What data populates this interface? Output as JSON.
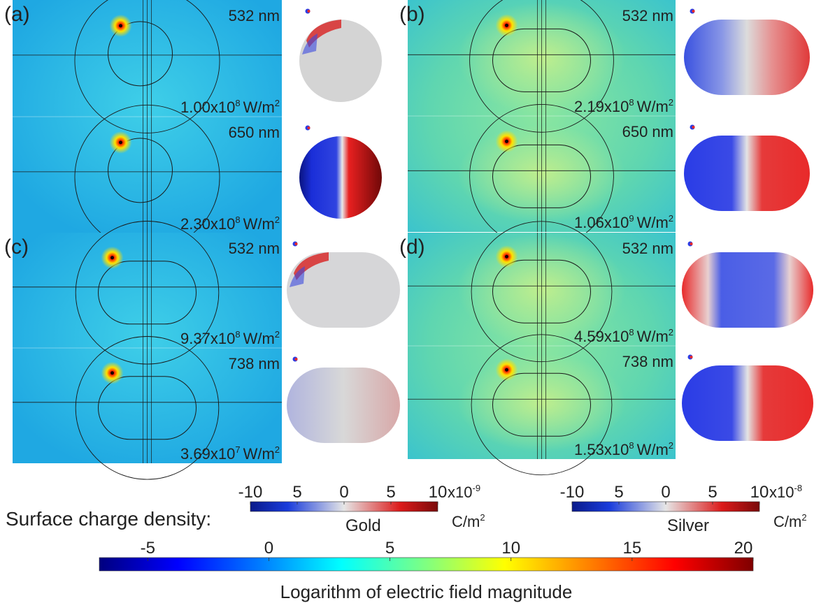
{
  "panels": [
    {
      "id": "a",
      "label": "(a)",
      "shape": "sphere",
      "metal": "gold",
      "rows": [
        {
          "wavelength": "532 nm",
          "intensity": "1.00x10",
          "exp": "8",
          "unit": "W/m",
          "sq": "2",
          "mode": "edge",
          "cmid": "#d4d4d4"
        },
        {
          "wavelength": "650 nm",
          "intensity": "2.30x10",
          "exp": "8",
          "unit": "W/m",
          "sq": "2",
          "mode": "dipole-strong",
          "cmid": "#ececec"
        }
      ]
    },
    {
      "id": "b",
      "label": "(b)",
      "shape": "rod",
      "metal": "silver",
      "rows": [
        {
          "wavelength": "532 nm",
          "intensity": "2.19x10",
          "exp": "8",
          "unit": "W/m",
          "sq": "2",
          "mode": "quadrupole",
          "cmid": "#dcdcdc"
        },
        {
          "wavelength": "650 nm",
          "intensity": "1.06x10",
          "exp": "9",
          "unit": "W/m",
          "sq": "2",
          "mode": "dipole",
          "cmid": "#e4e4e4"
        }
      ]
    },
    {
      "id": "c",
      "label": "(c)",
      "shape": "rod",
      "metal": "gold",
      "rows": [
        {
          "wavelength": "532 nm",
          "intensity": "9.37x10",
          "exp": "8",
          "unit": "W/m",
          "sq": "2",
          "mode": "edge",
          "cmid": "#d6d6d8"
        },
        {
          "wavelength": "738 nm",
          "intensity": "3.69x10",
          "exp": "7",
          "unit": "W/m",
          "sq": "2",
          "mode": "dipole-faint",
          "cmid": "#d8d8d8"
        }
      ]
    },
    {
      "id": "d",
      "label": "(d)",
      "shape": "rod",
      "metal": "silver",
      "rows": [
        {
          "wavelength": "532 nm",
          "intensity": "4.59x10",
          "exp": "8",
          "unit": "W/m",
          "sq": "2",
          "mode": "quadrupole-rev",
          "cmid": "#dcdcdc"
        },
        {
          "wavelength": "738 nm",
          "intensity": "1.53x10",
          "exp": "8",
          "unit": "W/m",
          "sq": "2",
          "mode": "dipole",
          "cmid": "#e4e4e4"
        }
      ]
    }
  ],
  "charge_colorbars": {
    "title": "Surface charge density:",
    "gold": {
      "name": "Gold",
      "ticks": [
        "-10",
        "5",
        "0",
        "5",
        "10"
      ],
      "multiplier": "x10",
      "multiplier_exp": "-9",
      "unit": "C/m",
      "unit_exp": "2"
    },
    "silver": {
      "name": "Silver",
      "ticks": [
        "-10",
        "5",
        "0",
        "5",
        "10"
      ],
      "multiplier": "x10",
      "multiplier_exp": "-8",
      "unit": "C/m",
      "unit_exp": "2"
    }
  },
  "field_colorbar": {
    "title": "Logarithm of electric field magnitude",
    "min": -7,
    "max": 20,
    "ticks": [
      -5,
      0,
      5,
      10,
      15,
      20
    ]
  },
  "colors": {
    "field_blue_bg": "#25b6e6",
    "field_green_bg": "#66d9a4",
    "charge_blue": "#1a2ecc",
    "charge_red": "#e01414"
  }
}
